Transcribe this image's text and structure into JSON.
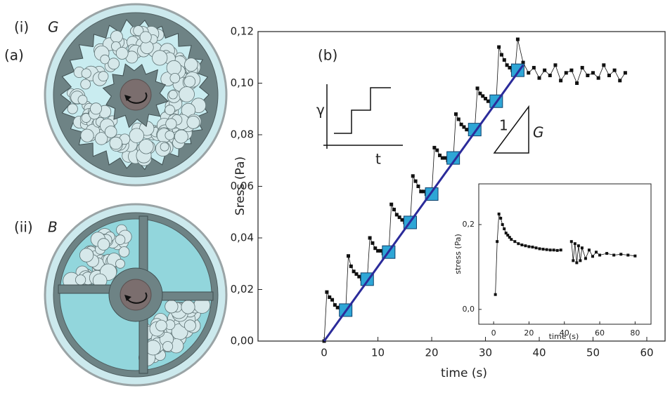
{
  "panel_a": {
    "label": "(a)",
    "items": [
      {
        "label": "(i)",
        "symbol": "G"
      },
      {
        "label": "(ii)",
        "symbol": "B"
      }
    ]
  },
  "chart_data": [
    {
      "type": "scatter",
      "panel": "(b)",
      "xlabel": "time (s)",
      "ylabel": "Sress (Pa)",
      "annotations": {
        "strain": "γ",
        "time": "t",
        "slope": "1",
        "modulus": "G"
      },
      "xlim": [
        -12.3,
        63.4
      ],
      "ylim": [
        0,
        0.12
      ],
      "xticks": [
        0,
        10,
        20,
        30,
        40,
        50,
        60
      ],
      "yticks": [
        {
          "value": 0,
          "label": "0,00"
        },
        {
          "value": 0.02,
          "label": "0,02"
        },
        {
          "value": 0.04,
          "label": "0,04"
        },
        {
          "value": 0.06,
          "label": "0,06"
        },
        {
          "value": 0.08,
          "label": "0,08"
        },
        {
          "value": 0.1,
          "label": "0,10"
        },
        {
          "value": 0.12,
          "label": "0,12"
        }
      ],
      "series": [
        {
          "color": "#111111",
          "marker": "square",
          "connect": true,
          "x": [
            0,
            0.5,
            1,
            1.5,
            2,
            2.5,
            3,
            3.5,
            4,
            4.5,
            5,
            5.5,
            6,
            6.5,
            7,
            7.5,
            8,
            8.5,
            9,
            9.5,
            10,
            10.5,
            11,
            11.5,
            12,
            12.5,
            13,
            13.5,
            14,
            14.5,
            15,
            15.5,
            16,
            16.5,
            17,
            17.5,
            18,
            18.5,
            19,
            19.5,
            20,
            20.5,
            21,
            21.5,
            22,
            22.5,
            23,
            23.5,
            24,
            24.5,
            25,
            25.5,
            26,
            26.5,
            27,
            27.5,
            28,
            28.5,
            29,
            29.5,
            30,
            30.5,
            31,
            31.5,
            32,
            32.5,
            33,
            33.5,
            34,
            34.5,
            35,
            35.5,
            36,
            37,
            38,
            39,
            40,
            41,
            42,
            43,
            44,
            45,
            46,
            47,
            48,
            49,
            50,
            51,
            52,
            53,
            54,
            55,
            56
          ],
          "values": [
            0,
            0.019,
            0.017,
            0.016,
            0.014,
            0.013,
            0.013,
            0.012,
            0.012,
            0.033,
            0.029,
            0.027,
            0.026,
            0.025,
            0.024,
            0.024,
            0.024,
            0.04,
            0.038,
            0.036,
            0.035,
            0.035,
            0.034,
            0.034,
            0.034,
            0.053,
            0.051,
            0.049,
            0.048,
            0.047,
            0.046,
            0.046,
            0.046,
            0.064,
            0.062,
            0.06,
            0.058,
            0.058,
            0.057,
            0.057,
            0.057,
            0.075,
            0.074,
            0.072,
            0.071,
            0.071,
            0.07,
            0.07,
            0.07,
            0.088,
            0.086,
            0.084,
            0.083,
            0.082,
            0.082,
            0.082,
            0.082,
            0.098,
            0.096,
            0.095,
            0.094,
            0.093,
            0.093,
            0.093,
            0.093,
            0.114,
            0.111,
            0.109,
            0.107,
            0.106,
            0.105,
            0.105,
            0.117,
            0.108,
            0.104,
            0.106,
            0.102,
            0.105,
            0.103,
            0.107,
            0.101,
            0.104,
            0.105,
            0.1,
            0.106,
            0.103,
            0.104,
            0.102,
            0.107,
            0.103,
            0.105,
            0.101,
            0.104
          ]
        },
        {
          "color": "#2ea6d6",
          "marker": "big-square",
          "x": [
            4,
            8,
            12,
            16,
            20,
            24,
            28,
            32,
            36
          ],
          "values": [
            0.012,
            0.024,
            0.0345,
            0.046,
            0.057,
            0.071,
            0.082,
            0.093,
            0.105
          ]
        },
        {
          "color": "#2b2b9a",
          "marker": "none",
          "connect": true,
          "x": [
            0,
            37
          ],
          "values": [
            0,
            0.107
          ]
        }
      ]
    },
    {
      "type": "scatter",
      "xlabel": "time (s)",
      "ylabel": "stress (Pa)",
      "xlim": [
        -8.4,
        89
      ],
      "ylim": [
        -0.035,
        0.296
      ],
      "xticks": [
        0,
        20,
        40,
        60,
        80
      ],
      "yticks": [
        {
          "value": 0,
          "label": "0,0"
        },
        {
          "value": 0.2,
          "label": "0,2"
        }
      ],
      "series": [
        {
          "color": "#111111",
          "marker": "square",
          "connect": true,
          "x": [
            1,
            2,
            3,
            4,
            5,
            6,
            7,
            8,
            9,
            10,
            12,
            14,
            16,
            18,
            20,
            22,
            24,
            26,
            28,
            30,
            32,
            34,
            36,
            38,
            41,
            44,
            45,
            46,
            47,
            48,
            49,
            50,
            52,
            54,
            56,
            58,
            60,
            64,
            68,
            72,
            76,
            80
          ],
          "values": [
            0.035,
            0.16,
            0.225,
            0.215,
            0.2,
            0.19,
            0.18,
            0.175,
            0.17,
            0.165,
            0.16,
            0.155,
            0.152,
            0.15,
            0.148,
            0.147,
            0.145,
            0.143,
            0.142,
            0.141,
            0.14,
            0.14,
            0.139,
            0.14,
            null,
            0.16,
            0.115,
            0.155,
            0.11,
            0.15,
            0.115,
            0.145,
            0.12,
            0.14,
            0.125,
            0.135,
            0.128,
            0.132,
            0.128,
            0.13,
            0.128,
            0.126
          ]
        }
      ]
    }
  ]
}
